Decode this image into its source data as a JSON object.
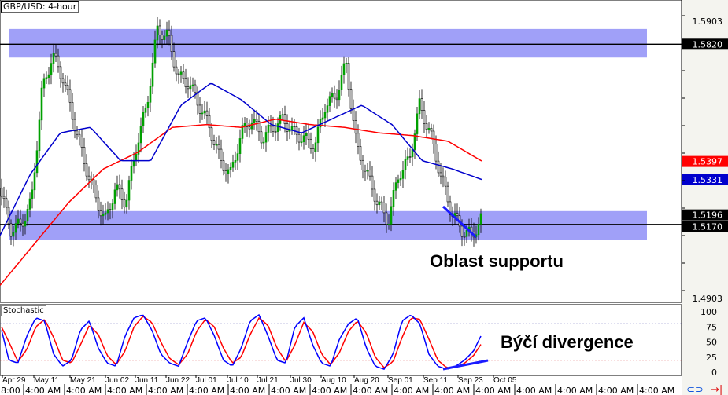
{
  "window": {
    "title": "GBP/USD: 4-hour"
  },
  "indicator": {
    "name": "Stochastic"
  },
  "annotations": {
    "support": "Oblast supportu",
    "divergence": "Býčí divergence"
  },
  "price_axis": {
    "ticks": [
      "1.5903",
      "1.4903"
    ],
    "labels": [
      {
        "value": "1.5820",
        "bg": "#000000",
        "fg": "#ffffff"
      },
      {
        "value": "1.5397",
        "bg": "#ff0000",
        "fg": "#ffffff"
      },
      {
        "value": "1.5331",
        "bg": "#0000cc",
        "fg": "#ffffff"
      },
      {
        "value": "1.5196",
        "bg": "#000000",
        "fg": "#ffffff"
      },
      {
        "value": "1.5170",
        "bg": "#000000",
        "fg": "#ffffff"
      }
    ]
  },
  "stoch_axis": {
    "ticks": [
      "100",
      "75",
      "50",
      "25",
      "0"
    ]
  },
  "dates": [
    "Apr 29",
    "May 11",
    "May 21",
    "Jun 02",
    "Jun 11",
    "Jun 22",
    "Jul 01",
    "Jul 10",
    "Jul 21",
    "Jul 30",
    "Aug 10",
    "Aug 20",
    "Sep 01",
    "Sep 11",
    "Sep 23",
    "Oct 05"
  ],
  "time_scroller": {
    "first": "8:00",
    "items": [
      "4:00 AM",
      "4:00 AM",
      "4:00 AM",
      "4:00 AM",
      "4:00 AM",
      "4:00 AM",
      "4:00 AM",
      "4:00 AM",
      "4:00 AM",
      "4:00 AM",
      "4:00 AM",
      "4:00 AM",
      "4:00 AM",
      "4:00 AM",
      "4:00 AM",
      "4:00 AM"
    ]
  },
  "icons": {
    "link": "link-icon",
    "jump_end": "jump-to-end-icon"
  },
  "colors": {
    "zone": "#a0a0f8",
    "ma_fast": "#0000cc",
    "ma_slow": "#ff0000",
    "bull": "#00a000",
    "bear": "#000000",
    "stoch_k": "#0000ff",
    "stoch_d": "#ff0000"
  },
  "chart_data": {
    "type": "candlestick",
    "price_range": [
      1.4903,
      1.5903
    ],
    "resistance_zone": [
      1.5772,
      1.5875
    ],
    "resistance_line": 1.582,
    "support_zone": [
      1.5113,
      1.5218
    ],
    "support_line": 1.517,
    "close_path": [
      1.53,
      1.515,
      1.517,
      1.525,
      1.565,
      1.578,
      1.57,
      1.555,
      1.54,
      1.528,
      1.518,
      1.53,
      1.525,
      1.545,
      1.56,
      1.587,
      1.585,
      1.57,
      1.568,
      1.56,
      1.552,
      1.54,
      1.535,
      1.55,
      1.555,
      1.548,
      1.552,
      1.555,
      1.55,
      1.548,
      1.545,
      1.56,
      1.563,
      1.575,
      1.545,
      1.535,
      1.525,
      1.518,
      1.535,
      1.54,
      1.56,
      1.55,
      1.535,
      1.522,
      1.515,
      1.513,
      1.5196
    ],
    "ma_fast": [
      1.513,
      1.535,
      1.55,
      1.552,
      1.54,
      1.54,
      1.56,
      1.568,
      1.562,
      1.553,
      1.55,
      1.555,
      1.56,
      1.553,
      1.54,
      1.537,
      1.5331
    ],
    "ma_slow": [
      1.495,
      1.51,
      1.525,
      1.537,
      1.543,
      1.552,
      1.553,
      1.552,
      1.555,
      1.553,
      1.552,
      1.55,
      1.549,
      1.547,
      1.5397
    ],
    "stochastic": {
      "levels": [
        80,
        20
      ],
      "range": [
        0,
        100
      ],
      "k": [
        80,
        20,
        15,
        60,
        90,
        85,
        30,
        10,
        20,
        70,
        85,
        40,
        15,
        10,
        60,
        90,
        95,
        70,
        30,
        15,
        10,
        50,
        85,
        90,
        60,
        20,
        10,
        40,
        85,
        95,
        60,
        20,
        15,
        75,
        90,
        45,
        15,
        10,
        55,
        80,
        90,
        40,
        10,
        5,
        30,
        85,
        95,
        80,
        30,
        10,
        5,
        10,
        20,
        35,
        65
      ]
    }
  }
}
